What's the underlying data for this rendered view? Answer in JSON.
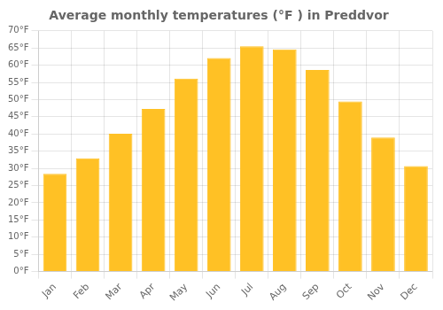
{
  "chart_data": {
    "type": "bar",
    "title": "Average monthly temperatures (°F ) in Preddvor",
    "categories": [
      "Jan",
      "Feb",
      "Mar",
      "Apr",
      "May",
      "Jun",
      "Jul",
      "Aug",
      "Sep",
      "Oct",
      "Nov",
      "Dec"
    ],
    "values": [
      28.4,
      32.9,
      40.1,
      47.3,
      56.1,
      62.1,
      65.5,
      64.6,
      58.6,
      49.5,
      39.0,
      30.7
    ],
    "color": "#FFC125",
    "ylim": [
      0,
      70
    ],
    "yticks": [
      {
        "value": 0,
        "label": "0°F"
      },
      {
        "value": 5,
        "label": "5°F"
      },
      {
        "value": 10,
        "label": "10°F"
      },
      {
        "value": 15,
        "label": "15°F"
      },
      {
        "value": 20,
        "label": "20°F"
      },
      {
        "value": 25,
        "label": "25°F"
      },
      {
        "value": 30,
        "label": "30°F"
      },
      {
        "value": 35,
        "label": "35°F"
      },
      {
        "value": 40,
        "label": "40°F"
      },
      {
        "value": 45,
        "label": "45°F"
      },
      {
        "value": 50,
        "label": "50°F"
      },
      {
        "value": 55,
        "label": "55°F"
      },
      {
        "value": 60,
        "label": "60°F"
      },
      {
        "value": 65,
        "label": "65°F"
      },
      {
        "value": 70,
        "label": "70°F"
      }
    ],
    "grid": true
  }
}
